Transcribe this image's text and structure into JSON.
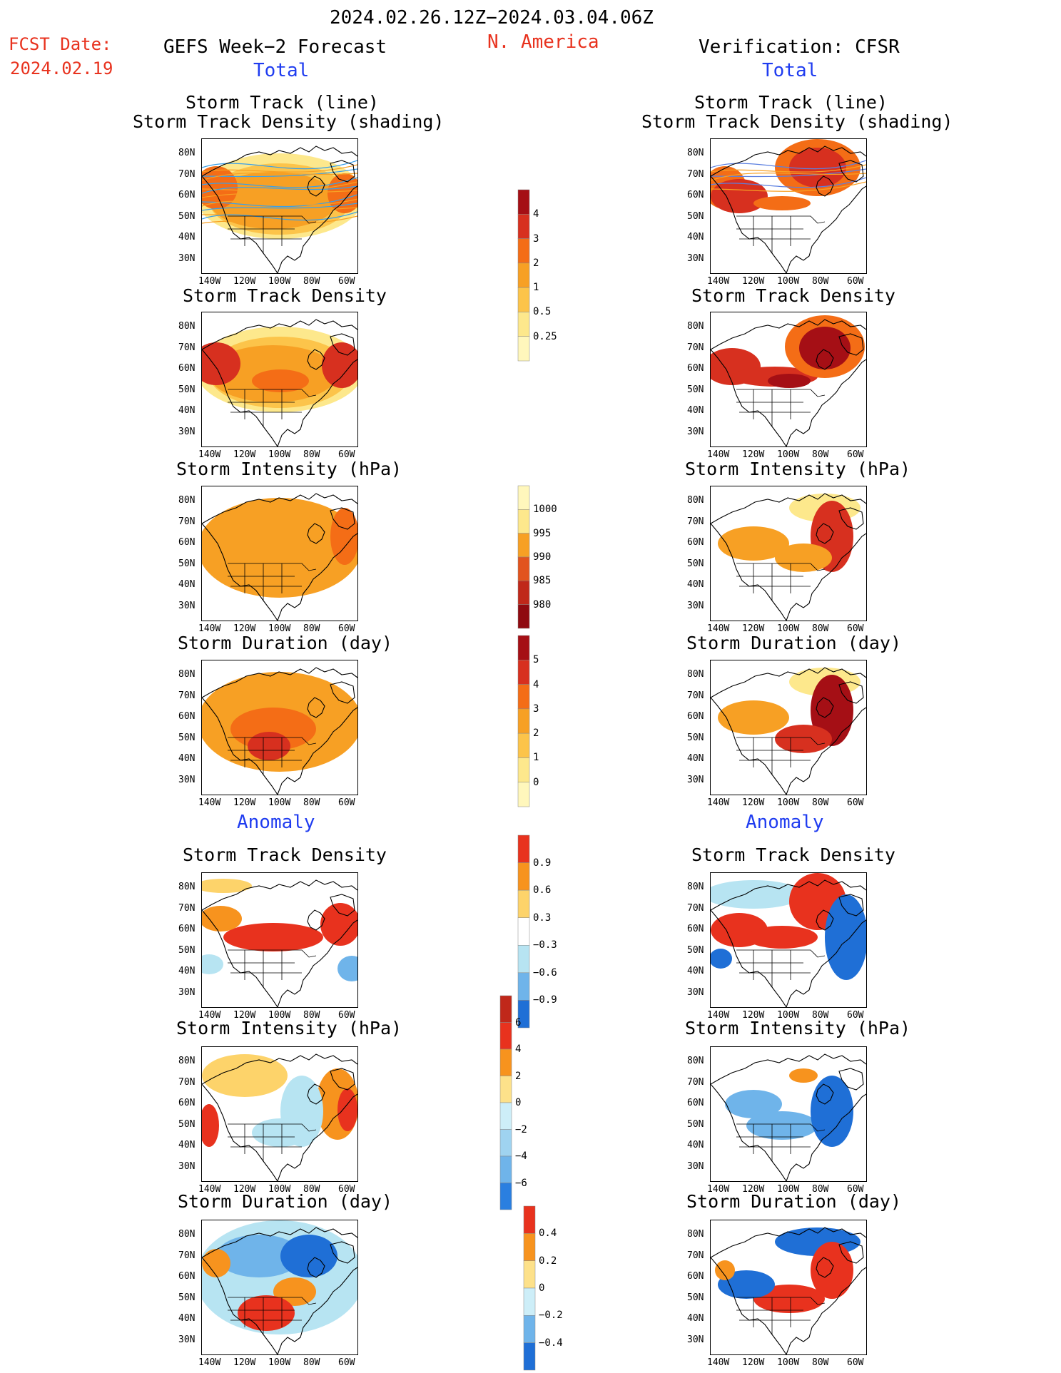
{
  "header": {
    "period": "2024.02.26.12Z−2024.03.04.06Z",
    "region": "N. America",
    "fcst_label": "FCST Date:",
    "fcst_date": "2024.02.19",
    "left_title": "GEFS Week−2 Forecast",
    "right_title": "Verification: CFSR",
    "total_label": "Total",
    "anomaly_label": "Anomaly"
  },
  "axes": {
    "lat_ticks": [
      "80N",
      "70N",
      "60N",
      "50N",
      "40N",
      "30N"
    ],
    "lon_ticks": [
      "140W",
      "120W",
      "100W",
      "80W",
      "60W"
    ]
  },
  "chart_data": [
    {
      "type": "heatmap",
      "panel": "forecast-total-track",
      "title": [
        "Storm Track (line)",
        "Storm Track Density (shading)"
      ]
    },
    {
      "type": "heatmap",
      "panel": "forecast-total-density",
      "title": "Storm Track Density"
    },
    {
      "type": "heatmap",
      "panel": "forecast-total-intensity",
      "title": "Storm Intensity (hPa)"
    },
    {
      "type": "heatmap",
      "panel": "forecast-total-duration",
      "title": "Storm Duration (day)"
    },
    {
      "type": "heatmap",
      "panel": "forecast-anom-density",
      "title": "Storm Track Density"
    },
    {
      "type": "heatmap",
      "panel": "forecast-anom-intensity",
      "title": "Storm Intensity (hPa)"
    },
    {
      "type": "heatmap",
      "panel": "forecast-anom-duration",
      "title": "Storm Duration (day)"
    },
    {
      "type": "heatmap",
      "panel": "verif-total-track",
      "title": [
        "Storm Track (line)",
        "Storm Track Density (shading)"
      ]
    },
    {
      "type": "heatmap",
      "panel": "verif-total-density",
      "title": "Storm Track Density"
    },
    {
      "type": "heatmap",
      "panel": "verif-total-intensity",
      "title": "Storm Intensity (hPa)"
    },
    {
      "type": "heatmap",
      "panel": "verif-total-duration",
      "title": "Storm Duration (day)"
    },
    {
      "type": "heatmap",
      "panel": "verif-anom-density",
      "title": "Storm Track Density"
    },
    {
      "type": "heatmap",
      "panel": "verif-anom-intensity",
      "title": "Storm Intensity (hPa)"
    },
    {
      "type": "heatmap",
      "panel": "verif-anom-duration",
      "title": "Storm Duration (day)"
    }
  ],
  "colorbars": [
    {
      "name": "density-total",
      "labels": [
        "4",
        "3",
        "2",
        "1",
        "0.5",
        "0.25"
      ],
      "colors": [
        "#a50f15",
        "#d7301f",
        "#f46d16",
        "#f7a024",
        "#fcc44a",
        "#fde88c",
        "#fff7bc"
      ]
    },
    {
      "name": "intensity-total",
      "labels": [
        "1000",
        "995",
        "990",
        "985",
        "980"
      ],
      "colors": [
        "#fff7bc",
        "#fde88c",
        "#f7a024",
        "#e2541e",
        "#c0281a",
        "#8f0a10"
      ]
    },
    {
      "name": "duration-total",
      "labels": [
        "5",
        "4",
        "3",
        "2",
        "1",
        "0"
      ],
      "colors": [
        "#a50f15",
        "#d7301f",
        "#f46d16",
        "#f7a024",
        "#fcc44a",
        "#fde88c",
        "#fff7bc"
      ]
    },
    {
      "name": "density-anom",
      "labels": [
        "0.9",
        "0.6",
        "0.3",
        "−0.3",
        "−0.6",
        "−0.9"
      ],
      "colors": [
        "#e8321e",
        "#f7931e",
        "#fdd36a",
        "#ffffff",
        "#b7e4f2",
        "#6fb4ea",
        "#1f6fd6"
      ]
    },
    {
      "name": "intensity-anom",
      "labels": [
        "6",
        "4",
        "2",
        "0",
        "−2",
        "−4",
        "−6"
      ],
      "colors": [
        "#c0281a",
        "#e8321e",
        "#f7931e",
        "#fde18a",
        "#cdeef8",
        "#9fd3f0",
        "#6fb4ea",
        "#2a7fe0"
      ]
    },
    {
      "name": "duration-anom",
      "labels": [
        "0.4",
        "0.2",
        "0",
        "−0.2",
        "−0.4"
      ],
      "colors": [
        "#e8321e",
        "#f7931e",
        "#fde18a",
        "#cdeef8",
        "#6fb4ea",
        "#1f6fd6"
      ]
    }
  ]
}
